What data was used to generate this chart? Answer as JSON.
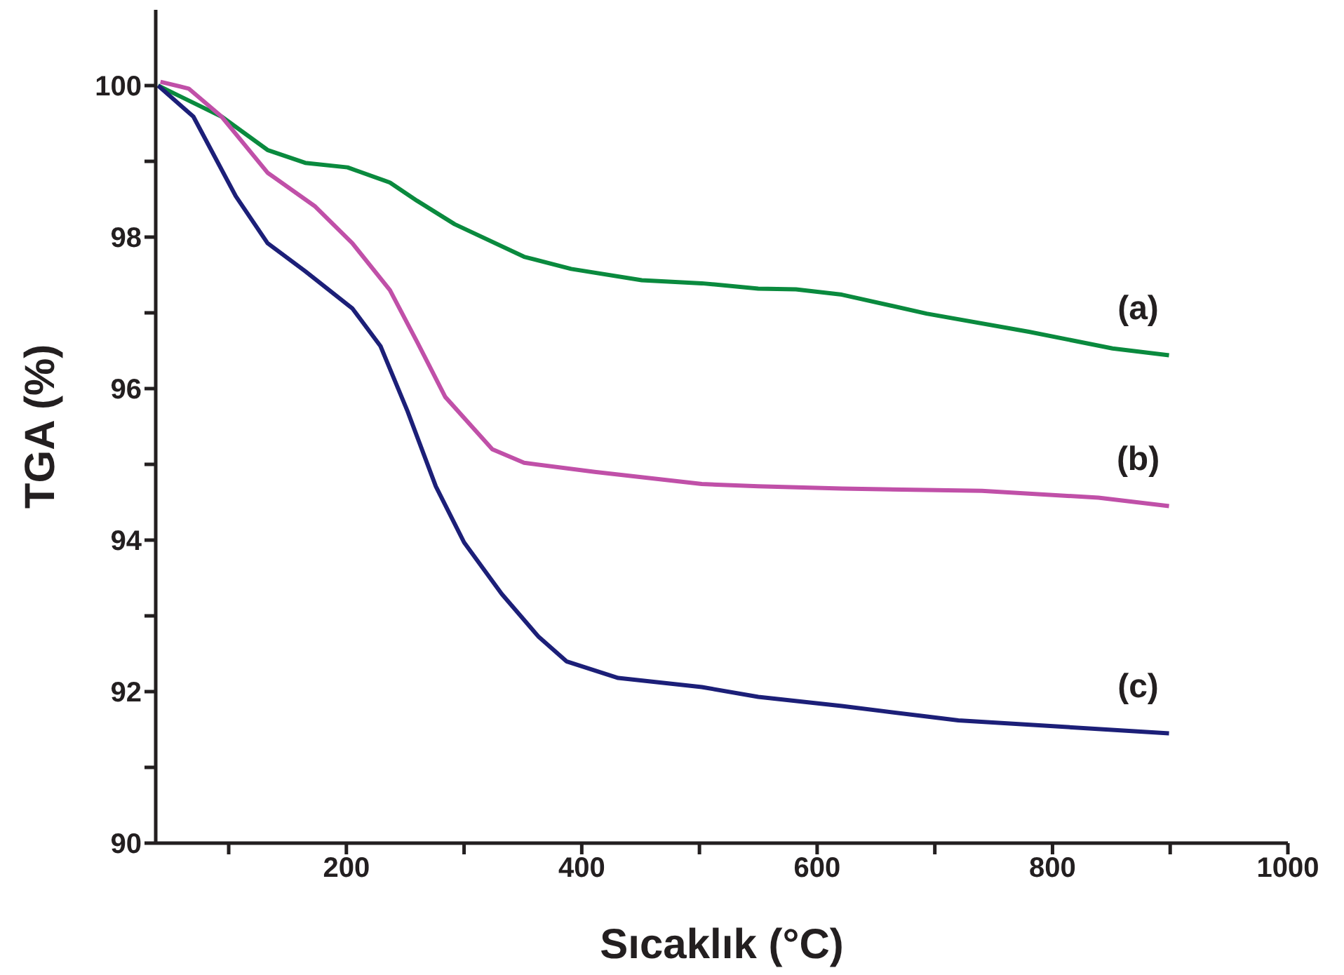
{
  "chart_data": {
    "type": "line",
    "xlabel": "Sıcaklık (°C)",
    "ylabel": "TGA (%)",
    "xlim": [
      38,
      1000
    ],
    "ylim": [
      90,
      101
    ],
    "xticks": [
      {
        "value": 100,
        "label": null
      },
      200,
      {
        "value": 300,
        "label": null
      },
      400,
      {
        "value": 500,
        "label": null
      },
      600,
      {
        "value": 700,
        "label": null
      },
      800,
      {
        "value": 900,
        "label": null
      },
      1000
    ],
    "yticks": [
      90,
      {
        "value": 91,
        "label": null
      },
      92,
      {
        "value": 93,
        "label": null
      },
      94,
      {
        "value": 95,
        "label": null
      },
      96,
      {
        "value": 97,
        "label": null
      },
      98,
      {
        "value": 99,
        "label": null
      },
      100
    ],
    "grid": false,
    "legend": false,
    "marker": "none",
    "line_style": "solid",
    "series": [
      {
        "name": "(a)",
        "color": "#0a8a3e",
        "x": [
          40,
          94,
          133,
          165,
          201,
          237,
          260,
          292,
          351,
          391,
          451,
          502,
          550,
          582,
          621,
          693,
          780,
          851,
          899
        ],
        "values": [
          100.0,
          99.59,
          99.15,
          98.98,
          98.92,
          98.72,
          98.48,
          98.17,
          97.74,
          97.58,
          97.43,
          97.39,
          97.32,
          97.31,
          97.24,
          96.99,
          96.75,
          96.53,
          96.44
        ]
      },
      {
        "name": "(b)",
        "color": "#c050a8",
        "x": [
          42,
          66,
          94,
          133,
          173,
          205,
          237,
          260,
          284,
          324,
          351,
          411,
          502,
          550,
          621,
          740,
          839,
          899
        ],
        "values": [
          100.05,
          99.96,
          99.59,
          98.85,
          98.41,
          97.92,
          97.3,
          96.62,
          95.89,
          95.2,
          95.02,
          94.9,
          94.74,
          94.71,
          94.68,
          94.65,
          94.56,
          94.45
        ]
      },
      {
        "name": "(c)",
        "color": "#1c1f78",
        "x": [
          40,
          70,
          106,
          133,
          165,
          205,
          229,
          252,
          276,
          300,
          332,
          363,
          387,
          431,
          502,
          550,
          621,
          720,
          899
        ],
        "values": [
          100.0,
          99.59,
          98.54,
          97.92,
          97.55,
          97.06,
          96.56,
          95.7,
          94.71,
          93.97,
          93.29,
          92.73,
          92.4,
          92.18,
          92.06,
          91.93,
          91.81,
          91.62,
          91.45
        ]
      }
    ]
  }
}
